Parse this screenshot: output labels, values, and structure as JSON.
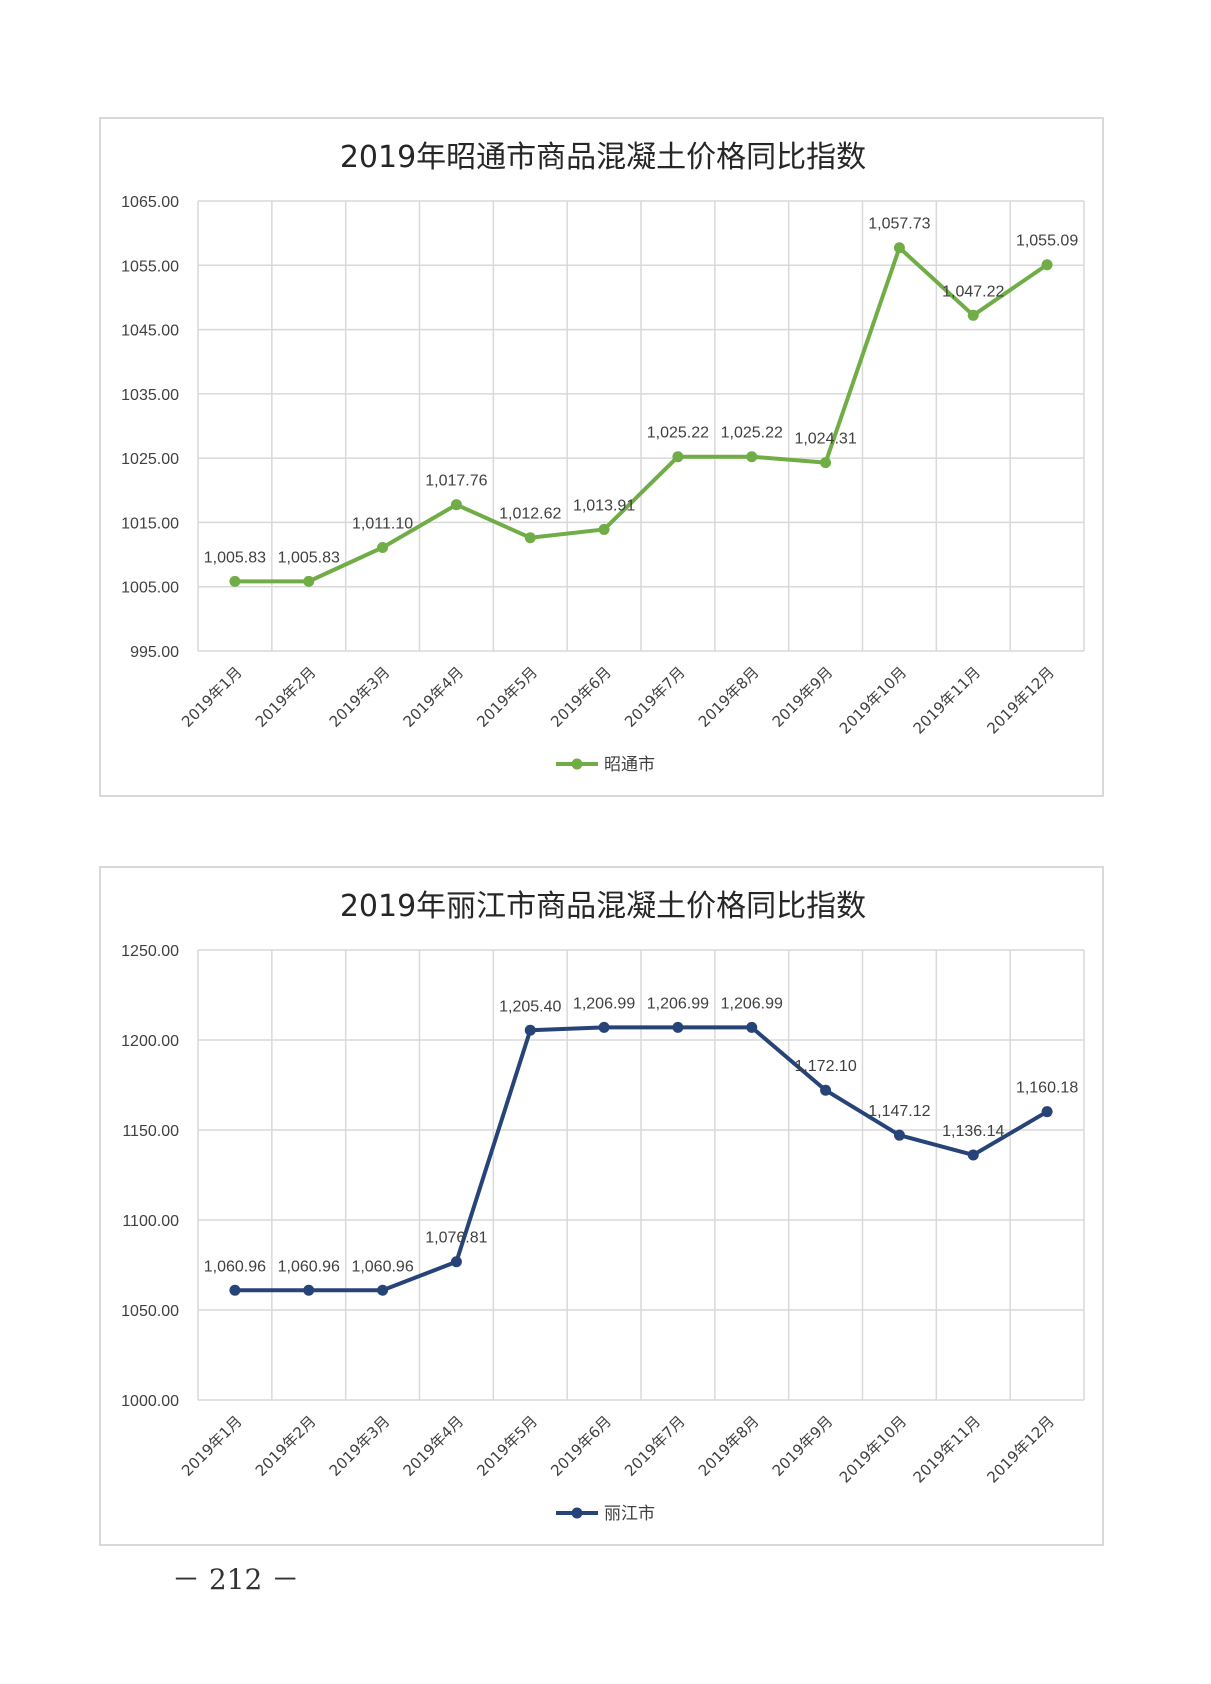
{
  "page_number": "－ 212 －",
  "chart_data": [
    {
      "type": "line",
      "title": "2019年昭通市商品混凝土价格同比指数",
      "categories": [
        "2019年1月",
        "2019年2月",
        "2019年3月",
        "2019年4月",
        "2019年5月",
        "2019年6月",
        "2019年7月",
        "2019年8月",
        "2019年9月",
        "2019年10月",
        "2019年11月",
        "2019年12月"
      ],
      "series": [
        {
          "name": "昭通市",
          "color": "#70ad47",
          "values": [
            1005.83,
            1005.83,
            1011.1,
            1017.76,
            1012.62,
            1013.91,
            1025.22,
            1025.22,
            1024.31,
            1057.73,
            1047.22,
            1055.09
          ],
          "labels": [
            "1,005.83",
            "1,005.83",
            "1,011.10",
            "1,017.76",
            "1,012.62",
            "1,013.91",
            "1,025.22",
            "1,025.22",
            "1,024.31",
            "1,057.73",
            "1,047.22",
            "1,055.09"
          ]
        }
      ],
      "yticks": [
        "995.00",
        "1005.00",
        "1015.00",
        "1025.00",
        "1035.00",
        "1045.00",
        "1055.00",
        "1065.00"
      ],
      "ylim": [
        995,
        1065
      ],
      "grid": true,
      "legend": "bottom-center"
    },
    {
      "type": "line",
      "title": "2019年丽江市商品混凝土价格同比指数",
      "categories": [
        "2019年1月",
        "2019年2月",
        "2019年3月",
        "2019年4月",
        "2019年5月",
        "2019年6月",
        "2019年7月",
        "2019年8月",
        "2019年9月",
        "2019年10月",
        "2019年11月",
        "2019年12月"
      ],
      "series": [
        {
          "name": "丽江市",
          "color": "#264478",
          "values": [
            1060.96,
            1060.96,
            1060.96,
            1076.81,
            1205.4,
            1206.99,
            1206.99,
            1206.99,
            1172.1,
            1147.12,
            1136.14,
            1160.18
          ],
          "labels": [
            "1,060.96",
            "1,060.96",
            "1,060.96",
            "1,076.81",
            "1,205.40",
            "1,206.99",
            "1,206.99",
            "1,206.99",
            "1,172.10",
            "1,147.12",
            "1,136.14",
            "1,160.18"
          ]
        }
      ],
      "yticks": [
        "1000.00",
        "1050.00",
        "1100.00",
        "1150.00",
        "1200.00",
        "1250.00"
      ],
      "ylim": [
        1000,
        1250
      ],
      "grid": true,
      "legend": "bottom-center"
    }
  ]
}
